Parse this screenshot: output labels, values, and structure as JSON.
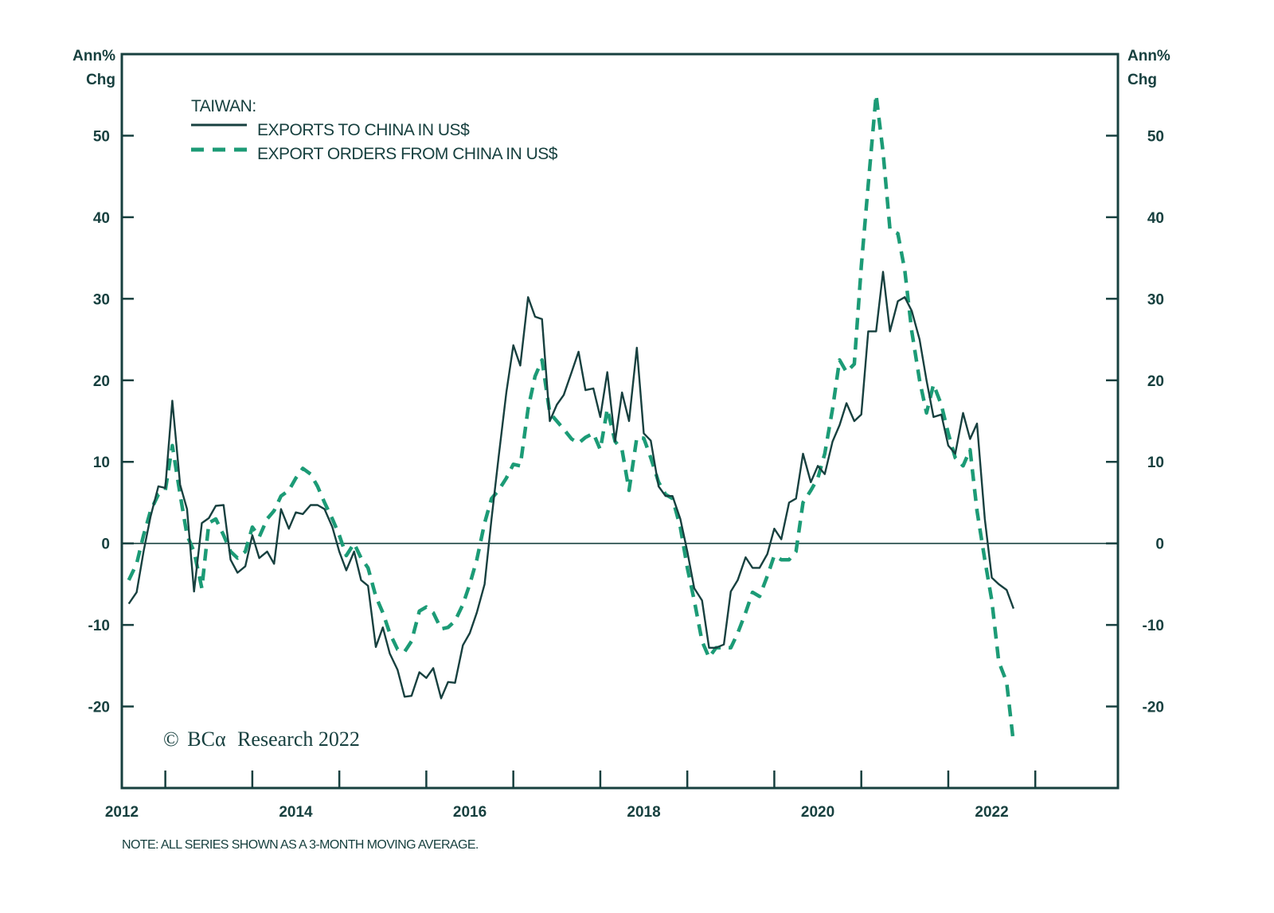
{
  "chart_data": {
    "type": "line",
    "title": "TAIWAN:",
    "left_axis_label": [
      "Ann%",
      "Chg"
    ],
    "right_axis_label": [
      "Ann%",
      "Chg"
    ],
    "xlabel": "",
    "ylabel": "Ann% Chg",
    "ylim": [
      -30,
      60
    ],
    "xlim": [
      2012.0,
      2023.45
    ],
    "yticks": [
      -20,
      -10,
      0,
      10,
      20,
      30,
      40,
      50
    ],
    "ytick_labels": [
      "-20",
      "-10",
      "0",
      "10",
      "20",
      "30",
      "40",
      "50"
    ],
    "xtick_labels": [
      {
        "x": 2012,
        "label": "2012"
      },
      {
        "x": 2014,
        "label": "2014"
      },
      {
        "x": 2016,
        "label": "2016"
      },
      {
        "x": 2018,
        "label": "2018"
      },
      {
        "x": 2020,
        "label": "2020"
      },
      {
        "x": 2022,
        "label": "2022"
      }
    ],
    "xtick_marks": [
      2012.5,
      2013.5,
      2014.5,
      2015.5,
      2016.5,
      2017.5,
      2018.5,
      2019.5,
      2020.5,
      2021.5,
      2022.5
    ],
    "zero_line": true,
    "grid": false,
    "legend_position": "top-left",
    "series": [
      {
        "name": "EXPORTS TO CHINA IN US$",
        "style": "solid",
        "color": "#17403f",
        "points": [
          [
            2012.08,
            -7.4
          ],
          [
            2012.17,
            -6.0
          ],
          [
            2012.25,
            -1.0
          ],
          [
            2012.33,
            3.3
          ],
          [
            2012.42,
            7.0
          ],
          [
            2012.5,
            6.8
          ],
          [
            2012.58,
            17.5
          ],
          [
            2012.67,
            7.2
          ],
          [
            2012.75,
            4.2
          ],
          [
            2012.83,
            -5.9
          ],
          [
            2012.92,
            2.5
          ],
          [
            2013.0,
            3.1
          ],
          [
            2013.08,
            4.6
          ],
          [
            2013.17,
            4.7
          ],
          [
            2013.25,
            -2.0
          ],
          [
            2013.33,
            -3.6
          ],
          [
            2013.42,
            -2.8
          ],
          [
            2013.5,
            1.0
          ],
          [
            2013.58,
            -1.8
          ],
          [
            2013.67,
            -1.0
          ],
          [
            2013.75,
            -2.5
          ],
          [
            2013.83,
            4.2
          ],
          [
            2013.92,
            1.8
          ],
          [
            2014.0,
            3.8
          ],
          [
            2014.08,
            3.6
          ],
          [
            2014.17,
            4.7
          ],
          [
            2014.25,
            4.7
          ],
          [
            2014.33,
            4.2
          ],
          [
            2014.42,
            2.0
          ],
          [
            2014.5,
            -1.0
          ],
          [
            2014.58,
            -3.3
          ],
          [
            2014.67,
            -1.0
          ],
          [
            2014.75,
            -4.5
          ],
          [
            2014.83,
            -5.2
          ],
          [
            2014.92,
            -12.7
          ],
          [
            2015.0,
            -10.3
          ],
          [
            2015.08,
            -13.5
          ],
          [
            2015.17,
            -15.5
          ],
          [
            2015.25,
            -18.8
          ],
          [
            2015.33,
            -18.7
          ],
          [
            2015.42,
            -15.8
          ],
          [
            2015.5,
            -16.5
          ],
          [
            2015.58,
            -15.3
          ],
          [
            2015.67,
            -19.0
          ],
          [
            2015.75,
            -17.0
          ],
          [
            2015.83,
            -17.1
          ],
          [
            2015.92,
            -12.5
          ],
          [
            2016.0,
            -11.0
          ],
          [
            2016.08,
            -8.5
          ],
          [
            2016.17,
            -5.0
          ],
          [
            2016.25,
            3.0
          ],
          [
            2016.33,
            10.5
          ],
          [
            2016.42,
            18.5
          ],
          [
            2016.5,
            24.3
          ],
          [
            2016.58,
            21.8
          ],
          [
            2016.67,
            30.2
          ],
          [
            2016.75,
            27.8
          ],
          [
            2016.83,
            27.5
          ],
          [
            2016.92,
            15.0
          ],
          [
            2017.0,
            17.0
          ],
          [
            2017.08,
            18.2
          ],
          [
            2017.17,
            21.0
          ],
          [
            2017.25,
            23.5
          ],
          [
            2017.33,
            18.8
          ],
          [
            2017.42,
            19.0
          ],
          [
            2017.5,
            15.5
          ],
          [
            2017.58,
            21.0
          ],
          [
            2017.67,
            12.5
          ],
          [
            2017.75,
            18.5
          ],
          [
            2017.83,
            15.0
          ],
          [
            2017.92,
            24.0
          ],
          [
            2018.0,
            13.5
          ],
          [
            2018.08,
            12.6
          ],
          [
            2018.17,
            7.0
          ],
          [
            2018.25,
            5.8
          ],
          [
            2018.33,
            5.8
          ],
          [
            2018.42,
            3.0
          ],
          [
            2018.5,
            -1.0
          ],
          [
            2018.58,
            -5.5
          ],
          [
            2018.67,
            -7.0
          ],
          [
            2018.75,
            -12.8
          ],
          [
            2018.83,
            -12.8
          ],
          [
            2018.92,
            -12.4
          ],
          [
            2019.0,
            -5.9
          ],
          [
            2019.08,
            -4.5
          ],
          [
            2019.17,
            -1.7
          ],
          [
            2019.25,
            -3.0
          ],
          [
            2019.33,
            -3.0
          ],
          [
            2019.42,
            -1.3
          ],
          [
            2019.5,
            1.8
          ],
          [
            2019.58,
            0.5
          ],
          [
            2019.67,
            5.0
          ],
          [
            2019.75,
            5.5
          ],
          [
            2019.83,
            11.0
          ],
          [
            2019.92,
            7.5
          ],
          [
            2020.0,
            9.5
          ],
          [
            2020.08,
            8.5
          ],
          [
            2020.17,
            12.5
          ],
          [
            2020.25,
            14.5
          ],
          [
            2020.33,
            17.2
          ],
          [
            2020.42,
            15.0
          ],
          [
            2020.5,
            15.8
          ],
          [
            2020.58,
            26.0
          ],
          [
            2020.67,
            26.0
          ],
          [
            2020.75,
            33.3
          ],
          [
            2020.83,
            26.0
          ],
          [
            2020.92,
            29.7
          ],
          [
            2021.0,
            30.2
          ],
          [
            2021.08,
            28.5
          ],
          [
            2021.17,
            25.0
          ],
          [
            2021.25,
            20.0
          ],
          [
            2021.33,
            15.5
          ],
          [
            2021.42,
            15.8
          ],
          [
            2021.5,
            12.0
          ],
          [
            2021.58,
            11.0
          ],
          [
            2021.67,
            16.0
          ],
          [
            2021.75,
            12.8
          ],
          [
            2021.83,
            14.7
          ],
          [
            2021.92,
            3.0
          ],
          [
            2022.0,
            -4.2
          ],
          [
            2022.08,
            -5.0
          ],
          [
            2022.17,
            -5.7
          ],
          [
            2022.25,
            -8.0
          ]
        ]
      },
      {
        "name": "EXPORT ORDERS FROM CHINA IN US$",
        "style": "dashed",
        "color": "#1c9b76",
        "points": [
          [
            2012.08,
            -4.5
          ],
          [
            2012.17,
            -2.5
          ],
          [
            2012.25,
            1.0
          ],
          [
            2012.33,
            4.0
          ],
          [
            2012.42,
            6.0
          ],
          [
            2012.5,
            6.5
          ],
          [
            2012.58,
            12.0
          ],
          [
            2012.67,
            6.0
          ],
          [
            2012.75,
            1.0
          ],
          [
            2012.83,
            -1.0
          ],
          [
            2012.92,
            -5.5
          ],
          [
            2013.0,
            2.5
          ],
          [
            2013.08,
            3.0
          ],
          [
            2013.17,
            1.0
          ],
          [
            2013.25,
            -1.0
          ],
          [
            2013.33,
            -1.8
          ],
          [
            2013.42,
            -1.0
          ],
          [
            2013.5,
            2.0
          ],
          [
            2013.58,
            0.8
          ],
          [
            2013.67,
            3.0
          ],
          [
            2013.75,
            4.0
          ],
          [
            2013.83,
            5.8
          ],
          [
            2013.92,
            6.5
          ],
          [
            2014.0,
            8.0
          ],
          [
            2014.08,
            9.2
          ],
          [
            2014.17,
            8.5
          ],
          [
            2014.25,
            7.0
          ],
          [
            2014.33,
            5.0
          ],
          [
            2014.42,
            3.0
          ],
          [
            2014.5,
            1.0
          ],
          [
            2014.58,
            -1.5
          ],
          [
            2014.67,
            0.0
          ],
          [
            2014.75,
            -1.8
          ],
          [
            2014.83,
            -3.0
          ],
          [
            2014.92,
            -6.5
          ],
          [
            2015.0,
            -8.5
          ],
          [
            2015.08,
            -11.0
          ],
          [
            2015.17,
            -13.0
          ],
          [
            2015.25,
            -13.3
          ],
          [
            2015.33,
            -12.0
          ],
          [
            2015.42,
            -8.3
          ],
          [
            2015.5,
            -7.8
          ],
          [
            2015.58,
            -8.5
          ],
          [
            2015.67,
            -10.5
          ],
          [
            2015.75,
            -10.3
          ],
          [
            2015.83,
            -9.5
          ],
          [
            2015.92,
            -7.5
          ],
          [
            2016.0,
            -5.0
          ],
          [
            2016.08,
            -2.0
          ],
          [
            2016.17,
            2.5
          ],
          [
            2016.25,
            5.5
          ],
          [
            2016.33,
            6.5
          ],
          [
            2016.42,
            8.0
          ],
          [
            2016.5,
            9.7
          ],
          [
            2016.58,
            9.5
          ],
          [
            2016.67,
            16.5
          ],
          [
            2016.75,
            20.5
          ],
          [
            2016.83,
            22.5
          ],
          [
            2016.92,
            16.0
          ],
          [
            2017.0,
            15.0
          ],
          [
            2017.08,
            14.0
          ],
          [
            2017.17,
            12.8
          ],
          [
            2017.25,
            12.3
          ],
          [
            2017.33,
            13.0
          ],
          [
            2017.42,
            13.5
          ],
          [
            2017.5,
            11.5
          ],
          [
            2017.58,
            16.5
          ],
          [
            2017.67,
            12.5
          ],
          [
            2017.75,
            11.5
          ],
          [
            2017.83,
            6.5
          ],
          [
            2017.92,
            13.0
          ],
          [
            2018.0,
            12.9
          ],
          [
            2018.08,
            10.5
          ],
          [
            2018.17,
            7.5
          ],
          [
            2018.25,
            6.0
          ],
          [
            2018.33,
            5.5
          ],
          [
            2018.42,
            2.0
          ],
          [
            2018.5,
            -3.0
          ],
          [
            2018.58,
            -7.0
          ],
          [
            2018.67,
            -12.0
          ],
          [
            2018.75,
            -14.0
          ],
          [
            2018.83,
            -12.8
          ],
          [
            2018.92,
            -12.8
          ],
          [
            2019.0,
            -12.8
          ],
          [
            2019.08,
            -11.0
          ],
          [
            2019.17,
            -8.5
          ],
          [
            2019.25,
            -6.0
          ],
          [
            2019.33,
            -6.5
          ],
          [
            2019.42,
            -4.0
          ],
          [
            2019.5,
            -1.5
          ],
          [
            2019.58,
            -2.0
          ],
          [
            2019.67,
            -2.0
          ],
          [
            2019.75,
            -1.0
          ],
          [
            2019.83,
            5.0
          ],
          [
            2019.92,
            6.5
          ],
          [
            2020.0,
            8.0
          ],
          [
            2020.08,
            11.0
          ],
          [
            2020.17,
            16.5
          ],
          [
            2020.25,
            22.5
          ],
          [
            2020.33,
            21.0
          ],
          [
            2020.42,
            22.0
          ],
          [
            2020.5,
            34.0
          ],
          [
            2020.58,
            44.0
          ],
          [
            2020.67,
            55.0
          ],
          [
            2020.75,
            48.0
          ],
          [
            2020.83,
            38.5
          ],
          [
            2020.92,
            38.0
          ],
          [
            2021.0,
            33.5
          ],
          [
            2021.08,
            26.0
          ],
          [
            2021.17,
            20.0
          ],
          [
            2021.25,
            16.0
          ],
          [
            2021.33,
            19.5
          ],
          [
            2021.42,
            17.0
          ],
          [
            2021.5,
            13.5
          ],
          [
            2021.58,
            10.5
          ],
          [
            2021.67,
            9.5
          ],
          [
            2021.75,
            11.5
          ],
          [
            2021.83,
            4.0
          ],
          [
            2021.92,
            -2.0
          ],
          [
            2022.0,
            -7.0
          ],
          [
            2022.08,
            -14.5
          ],
          [
            2022.17,
            -17.0
          ],
          [
            2022.25,
            -24.5
          ]
        ]
      }
    ],
    "annotations": [
      "© BCA Research 2022"
    ],
    "note": "NOTE: ALL SERIES SHOWN AS A 3-MONTH MOVING AVERAGE."
  },
  "legend": {
    "title": "TAIWAN:",
    "items": [
      {
        "label": "EXPORTS TO CHINA IN US$",
        "style": "solid",
        "color": "#17403f"
      },
      {
        "label": "EXPORT ORDERS FROM CHINA IN US$",
        "style": "dashed",
        "color": "#1c9b76"
      }
    ]
  },
  "copyright": {
    "symbol": "©",
    "brand": "BCα",
    "text": "Research 2022"
  },
  "footnote": "NOTE: ALL SERIES SHOWN AS A 3-MONTH MOVING AVERAGE.",
  "colors": {
    "axis": "#17403f",
    "solid_series": "#17403f",
    "dashed_series": "#1c9b76"
  }
}
